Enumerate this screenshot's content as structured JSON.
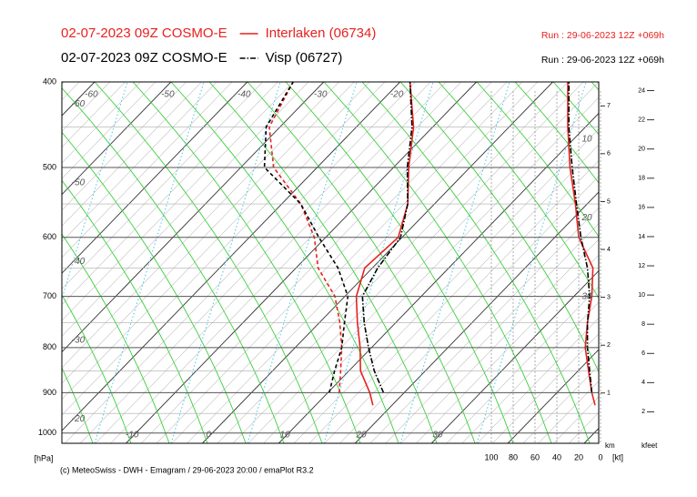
{
  "chart_data": {
    "type": "emagram",
    "series": [
      {
        "name": "Interlaken (06734)",
        "model": "02-07-2023 09Z COSMO-E",
        "run": "Run : 29-06-2023 12Z +069h",
        "color": "#e8211f",
        "pressure": [
          930,
          900,
          850,
          800,
          750,
          700,
          650,
          600,
          550,
          500,
          450,
          400
        ],
        "temperature": [
          17.5,
          15.5,
          11.5,
          8.5,
          5,
          1.5,
          -1,
          -0.5,
          -3.5,
          -8,
          -12.5,
          -18.7
        ],
        "dewpoint": [
          null,
          11.5,
          8.9,
          6.1,
          2.7,
          -1.3,
          -7.1,
          -11.5,
          -17.5,
          -25.7,
          -31.4,
          -34
        ],
        "wind_speed": [
          5,
          8,
          11,
          14,
          12,
          8,
          7,
          20,
          23,
          28,
          30,
          30
        ]
      },
      {
        "name": "Visp (06727)",
        "model": "02-07-2023 09Z COSMO-E",
        "run": "Run : 29-06-2023 12Z +069h",
        "color": "#000000",
        "pressure": [
          900,
          850,
          800,
          750,
          700,
          650,
          600,
          550,
          500,
          450,
          400
        ],
        "temperature": [
          17.3,
          13.3,
          9.6,
          5.9,
          2.3,
          0.7,
          -0.2,
          -3.5,
          -8.2,
          -12.7,
          -18.7
        ],
        "dewpoint": [
          10.2,
          8.1,
          6.1,
          3.3,
          0.4,
          -4.5,
          -10.9,
          -17.5,
          -26.9,
          -31.8,
          -34
        ],
        "wind_speed": [
          8,
          10,
          12,
          12,
          10,
          12,
          18,
          22,
          26,
          29,
          29
        ]
      }
    ],
    "y_label": "[hPa]",
    "log_scale": true,
    "ylim": [
      1027,
      400
    ],
    "yticks": [
      400,
      500,
      600,
      700,
      800,
      900,
      1000
    ],
    "xlim": [
      -18.4,
      51.9
    ],
    "isotherm_labels": {
      "top": [
        -60,
        -50,
        -40,
        -30,
        -20
      ],
      "left": [
        -60,
        -50,
        -40,
        -30,
        -20
      ],
      "bottom": [
        -10,
        0,
        10,
        20,
        30
      ],
      "right": [
        10,
        20,
        30
      ]
    },
    "wind_label": "[kt]",
    "wind_lim": [
      100,
      0
    ],
    "wind_ticks": [
      100,
      80,
      60,
      40,
      20,
      0
    ],
    "km_label": "km",
    "km_lim": [
      -0.05,
      7.5
    ],
    "km_ticks": [
      1,
      2,
      3,
      4,
      5,
      6,
      7
    ],
    "kfeet_label": "kfeet",
    "kfeet_lim": [
      -0.16,
      24.6
    ],
    "kfeet_ticks": [
      2,
      4,
      6,
      8,
      10,
      12,
      14,
      16,
      18,
      20,
      22,
      24
    ],
    "footer": "(c) MeteoSwiss - DWH - Emagram / 29-06-2023 20:00 / emaPlot R3.2"
  }
}
